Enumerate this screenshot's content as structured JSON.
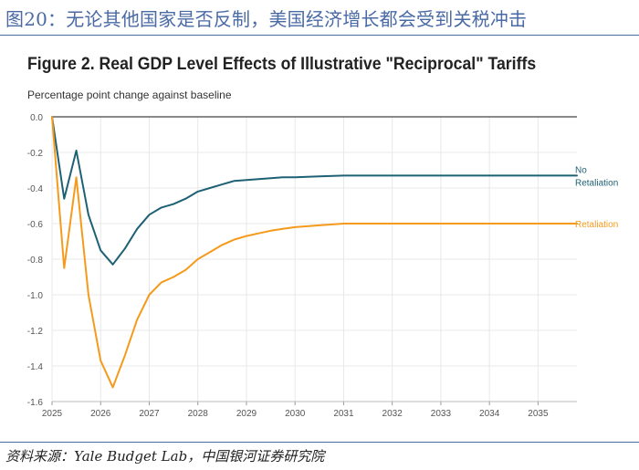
{
  "header": {
    "title": "图20：无论其他国家是否反制，美国经济增长都会受到关税冲击"
  },
  "footer": {
    "source": "资料来源：Yale Budget Lab，中国银河证券研究院"
  },
  "colors": {
    "header_blue": "#4a6aa6",
    "no_retaliation": "#1e6175",
    "retaliation": "#f59a1b",
    "grid": "#e8e8e8",
    "zero_line": "#444444"
  },
  "chart_data": {
    "type": "line",
    "title": "Figure 2. Real GDP Level Effects of Illustrative \"Reciprocal\" Tariffs",
    "ylabel": "Percentage point change against baseline",
    "xlabel": "",
    "ylim": [
      -1.6,
      0.0
    ],
    "xlim": [
      2025,
      2035.8
    ],
    "y_ticks": [
      "0.0",
      "-0.2",
      "-0.4",
      "-0.6",
      "-0.8",
      "-1.0",
      "-1.2",
      "-1.4",
      "-1.6"
    ],
    "x_ticks": [
      "2025",
      "2026",
      "2027",
      "2028",
      "2029",
      "2030",
      "2031",
      "2032",
      "2033",
      "2034",
      "2035"
    ],
    "grid": true,
    "series": [
      {
        "name": "No Retaliation",
        "label_lines": [
          "No",
          "Retaliation"
        ],
        "color": "#1e6175",
        "x": [
          2025.0,
          2025.25,
          2025.5,
          2025.75,
          2026.0,
          2026.25,
          2026.5,
          2026.75,
          2027.0,
          2027.25,
          2027.5,
          2027.75,
          2028.0,
          2028.25,
          2028.5,
          2028.75,
          2029.0,
          2029.25,
          2029.5,
          2029.75,
          2030.0,
          2030.5,
          2031.0,
          2031.5,
          2032.0,
          2033.0,
          2034.0,
          2035.0,
          2035.8
        ],
        "y": [
          0.0,
          -0.46,
          -0.19,
          -0.55,
          -0.75,
          -0.83,
          -0.74,
          -0.63,
          -0.55,
          -0.51,
          -0.49,
          -0.46,
          -0.42,
          -0.4,
          -0.38,
          -0.36,
          -0.355,
          -0.35,
          -0.345,
          -0.34,
          -0.34,
          -0.335,
          -0.33,
          -0.33,
          -0.33,
          -0.33,
          -0.33,
          -0.33,
          -0.33
        ]
      },
      {
        "name": "Retaliation",
        "label_lines": [
          "Retaliation"
        ],
        "color": "#f59a1b",
        "x": [
          2025.0,
          2025.25,
          2025.5,
          2025.75,
          2026.0,
          2026.25,
          2026.5,
          2026.75,
          2027.0,
          2027.25,
          2027.5,
          2027.75,
          2028.0,
          2028.25,
          2028.5,
          2028.75,
          2029.0,
          2029.25,
          2029.5,
          2029.75,
          2030.0,
          2030.5,
          2031.0,
          2031.5,
          2032.0,
          2033.0,
          2034.0,
          2035.0,
          2035.8
        ],
        "y": [
          0.0,
          -0.85,
          -0.34,
          -1.0,
          -1.37,
          -1.52,
          -1.34,
          -1.14,
          -1.0,
          -0.93,
          -0.9,
          -0.86,
          -0.8,
          -0.76,
          -0.72,
          -0.69,
          -0.67,
          -0.655,
          -0.64,
          -0.63,
          -0.62,
          -0.61,
          -0.6,
          -0.6,
          -0.6,
          -0.6,
          -0.6,
          -0.6,
          -0.6
        ]
      }
    ]
  }
}
